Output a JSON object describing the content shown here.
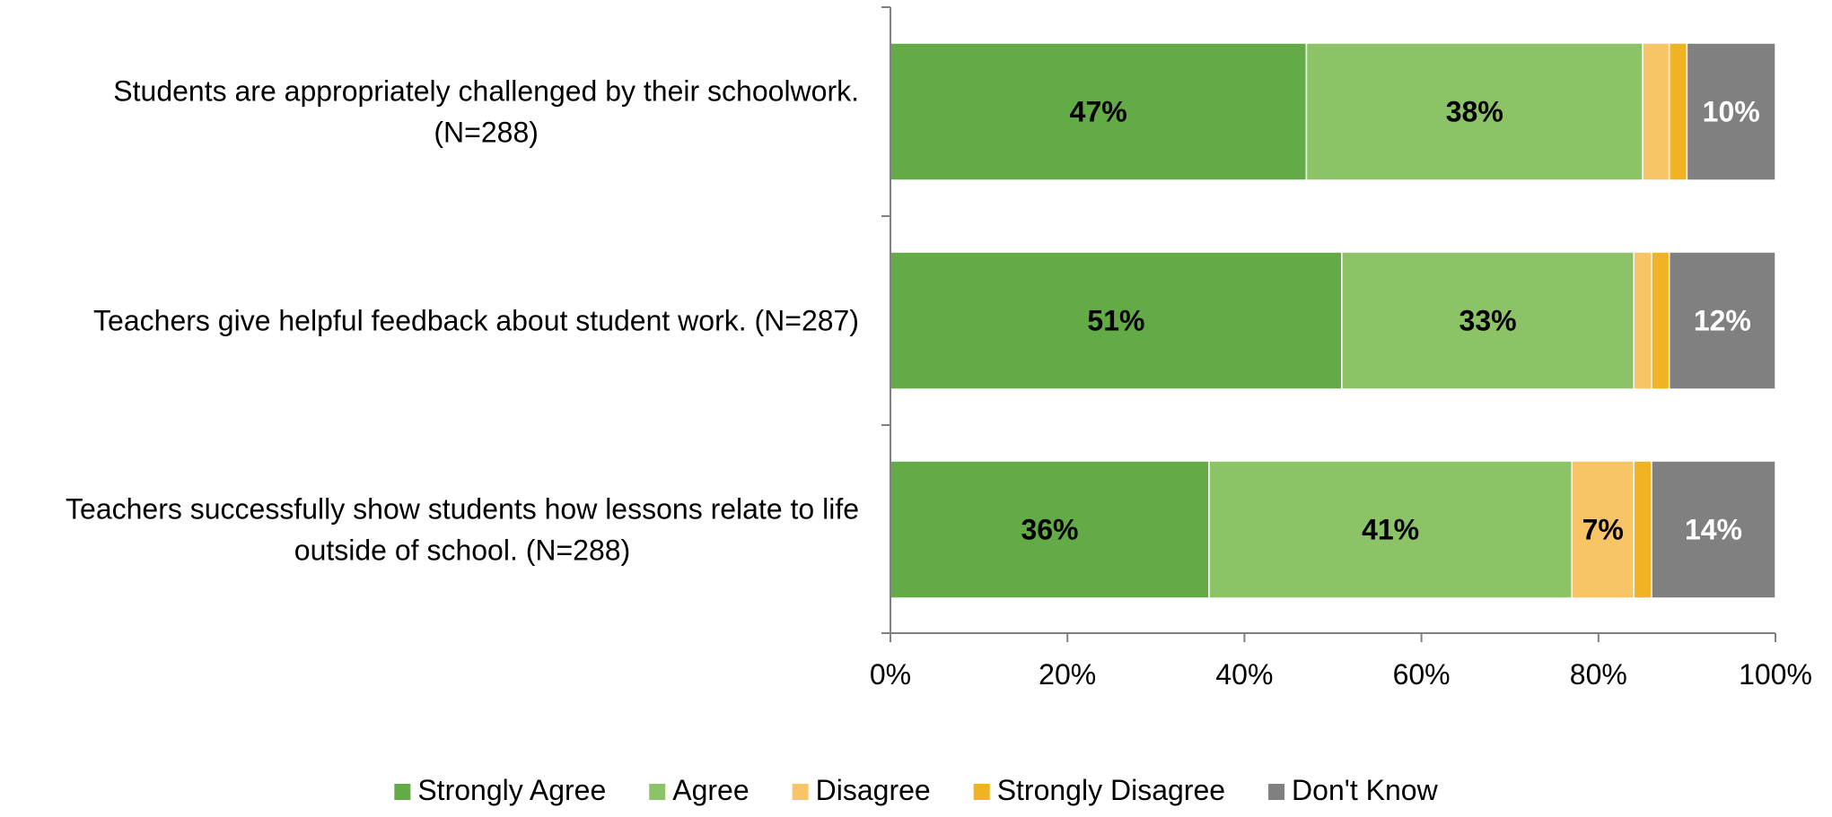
{
  "chart_data": {
    "type": "bar",
    "orientation": "horizontal",
    "stacked": true,
    "percent_stacked": true,
    "categories": [
      "Students are appropriately challenged by their schoolwork. (N=288)",
      "Teachers give helpful feedback about student work. (N=287)",
      "Teachers successfully show students how lessons relate to life outside of school. (N=288)"
    ],
    "category_label_lines": [
      [
        "Students are appropriately challenged by their schoolwork.",
        "(N=288)"
      ],
      [
        "Teachers give helpful feedback about student work. (N=287)"
      ],
      [
        "Teachers successfully show students how lessons relate to life",
        "outside of school. (N=288)"
      ]
    ],
    "series": [
      {
        "name": "Strongly Agree",
        "color": "#63AB46",
        "label_color": "#000000",
        "values": [
          47,
          51,
          36
        ],
        "labels": [
          "47%",
          "51%",
          "36%"
        ]
      },
      {
        "name": "Agree",
        "color": "#8DC367",
        "label_color": "#000000",
        "values": [
          38,
          33,
          41
        ],
        "labels": [
          "38%",
          "33%",
          "41%"
        ]
      },
      {
        "name": "Disagree",
        "color": "#F8C566",
        "label_color": "#000000",
        "values": [
          3,
          2,
          7
        ],
        "labels": [
          "",
          "",
          "7%"
        ]
      },
      {
        "name": "Strongly Disagree",
        "color": "#F0B323",
        "label_color": "#000000",
        "values": [
          2,
          2,
          2
        ],
        "labels": [
          "",
          "",
          ""
        ]
      },
      {
        "name": "Don't Know",
        "color": "#808080",
        "label_color": "#FFFFFF",
        "values": [
          10,
          12,
          14
        ],
        "labels": [
          "10%",
          "12%",
          "14%"
        ]
      }
    ],
    "xlim": [
      0,
      100
    ],
    "x_ticks": [
      0,
      20,
      40,
      60,
      80,
      100
    ],
    "x_tick_labels": [
      "0%",
      "20%",
      "40%",
      "60%",
      "80%",
      "100%"
    ],
    "title": "",
    "xlabel": "",
    "ylabel": "",
    "grid": false,
    "legend_position": "bottom"
  }
}
